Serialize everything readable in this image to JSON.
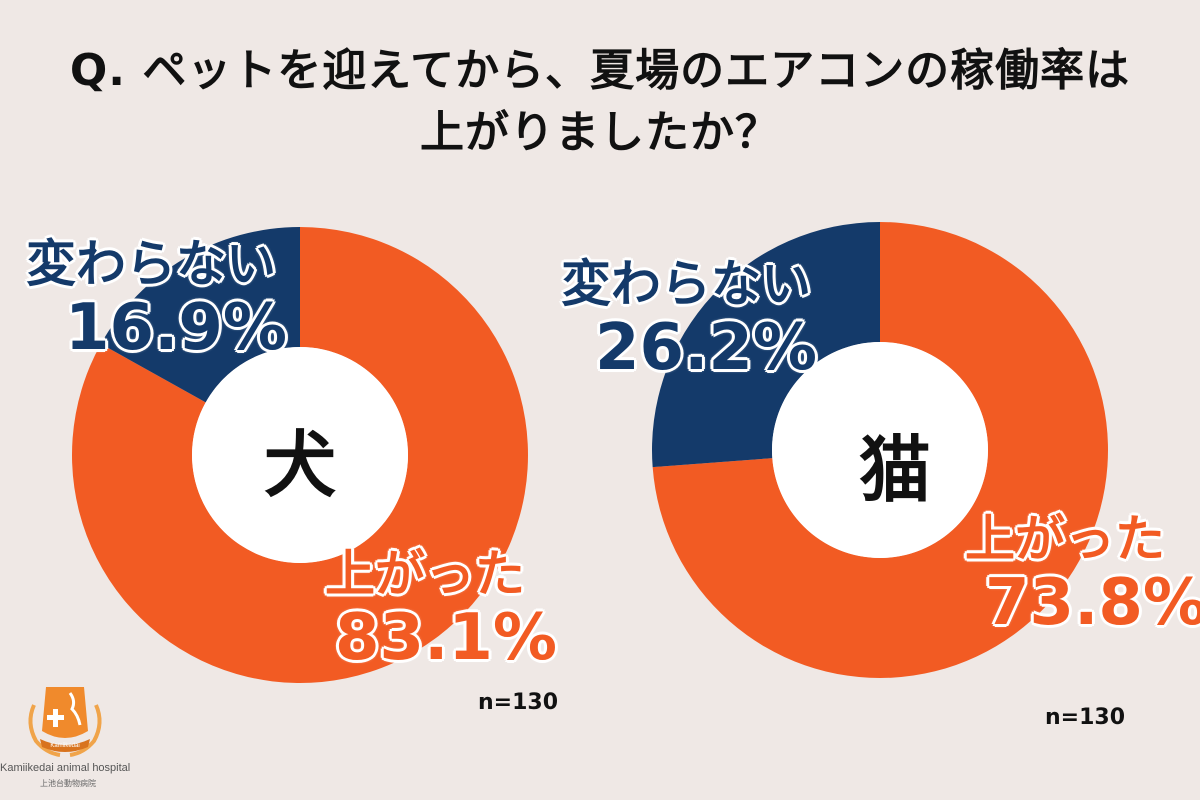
{
  "title": {
    "line1": "Q. ペットを迎えてから、夏場のエアコンの稼働率は",
    "line2": "上がりましたか？"
  },
  "colors": {
    "increased": "#f25b23",
    "unchanged": "#143a6a",
    "background": "#efe8e5"
  },
  "chart_data": [
    {
      "type": "pie",
      "center_label": "犬",
      "slices": [
        {
          "label": "上がった",
          "value": 83.1,
          "value_text": "83.1%",
          "color": "#f25b23"
        },
        {
          "label": "変わらない",
          "value": 16.9,
          "value_text": "16.9%",
          "color": "#143a6a"
        }
      ],
      "n_label": "n=130"
    },
    {
      "type": "pie",
      "center_label": "猫",
      "slices": [
        {
          "label": "上がった",
          "value": 73.8,
          "value_text": "73.8%",
          "color": "#f25b23"
        },
        {
          "label": "変わらない",
          "value": 26.2,
          "value_text": "26.2%",
          "color": "#143a6a"
        }
      ],
      "n_label": "n=130"
    }
  ],
  "logo": {
    "name": "Kamiikedai animal hospital",
    "subname": "上池台動物病院",
    "emblem_text": "Kamiikedai"
  }
}
